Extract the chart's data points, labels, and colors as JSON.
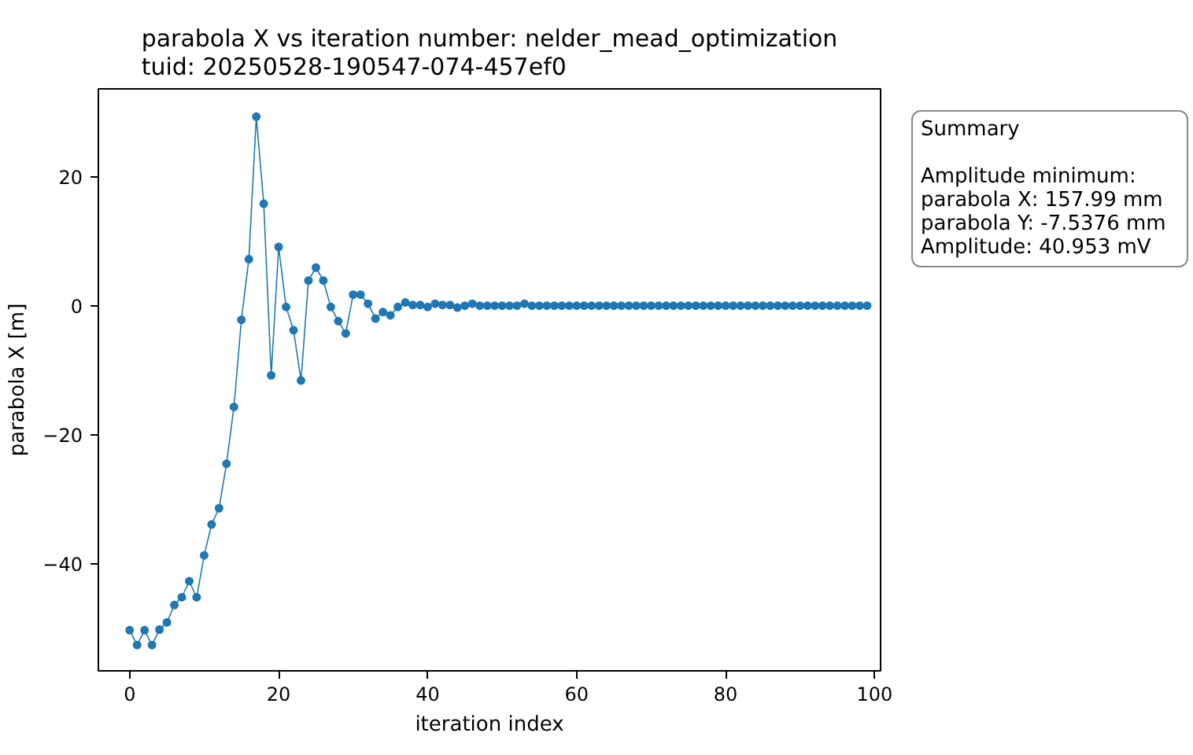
{
  "chart_data": {
    "type": "line",
    "title": "parabola X vs iteration number: nelder_mead_optimization\ntuid: 20250528-190547-074-457ef0",
    "xlabel": "iteration index",
    "ylabel": "parabola X [m]",
    "x": [
      0,
      1,
      2,
      3,
      4,
      5,
      6,
      7,
      8,
      9,
      10,
      11,
      12,
      13,
      14,
      15,
      16,
      17,
      18,
      19,
      20,
      21,
      22,
      23,
      24,
      25,
      26,
      27,
      28,
      29,
      30,
      31,
      32,
      33,
      34,
      35,
      36,
      37,
      38,
      39,
      40,
      41,
      42,
      43,
      44,
      45,
      46,
      47,
      48,
      49,
      50,
      51,
      52,
      53,
      54,
      55,
      56,
      57,
      58,
      59,
      60,
      61,
      62,
      63,
      64,
      65,
      66,
      67,
      68,
      69,
      70,
      71,
      72,
      73,
      74,
      75,
      76,
      77,
      78,
      79,
      80,
      81,
      82,
      83,
      84,
      85,
      86,
      87,
      88,
      89,
      90,
      91,
      92,
      93,
      94,
      95,
      96,
      97,
      98,
      99
    ],
    "series": [
      {
        "color": "#1f77b4",
        "values": [
          -50.3,
          -52.6,
          -50.3,
          -52.6,
          -50.2,
          -49.1,
          -46.4,
          -45.2,
          -42.7,
          -45.2,
          -38.7,
          -33.9,
          -31.4,
          -24.5,
          -15.7,
          -2.2,
          7.2,
          29.3,
          15.8,
          -10.8,
          9.1,
          -0.2,
          -3.8,
          -11.6,
          3.9,
          5.9,
          3.9,
          -0.2,
          -2.4,
          -4.3,
          1.7,
          1.7,
          0.3,
          -2.0,
          -1.0,
          -1.5,
          -0.2,
          0.5,
          0.1,
          0.1,
          -0.2,
          0.3,
          0.1,
          0.1,
          -0.3,
          0.0,
          0.3,
          0.0,
          0.0,
          0.0,
          0.0,
          0.0,
          0.0,
          0.3,
          0.0,
          0.0,
          0.0,
          0.0,
          0.0,
          0.0,
          0.0,
          0.0,
          0.0,
          0.0,
          0.0,
          0.0,
          0.0,
          0.0,
          0.0,
          0.0,
          0.0,
          0.0,
          0.0,
          0.0,
          0.0,
          0.0,
          0.0,
          0.0,
          0.0,
          0.0,
          0.0,
          0.0,
          0.0,
          0.0,
          0.0,
          0.0,
          0.0,
          0.0,
          0.0,
          0.0,
          0.0,
          0.0,
          0.0,
          0.0,
          0.0,
          0.0,
          0.0,
          0.0,
          0.0,
          0.0
        ]
      }
    ],
    "xlim": [
      -4.2,
      100.8
    ],
    "ylim": [
      -56.6,
      33.6
    ],
    "xticks": [
      0,
      20,
      40,
      60,
      80,
      100
    ],
    "yticks": [
      -40,
      -20,
      0,
      20
    ],
    "marker": "circle",
    "line_style": "solid",
    "grid": false,
    "annotations": [
      "Summary\n\nAmplitude minimum:\nparabola X: 157.99 mm\nparabola Y: -7.5376 mm\nAmplitude: 40.953 mV"
    ]
  }
}
